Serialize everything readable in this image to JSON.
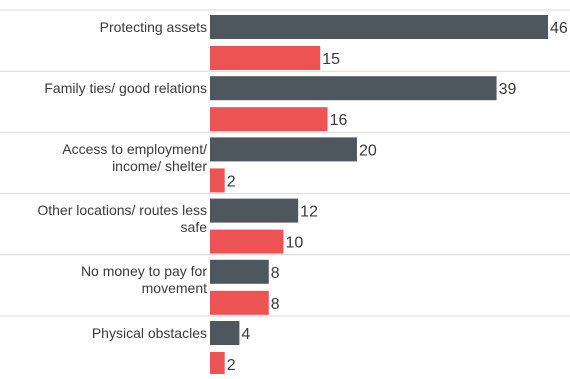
{
  "chart_data": {
    "type": "bar",
    "orientation": "horizontal",
    "categories": [
      "Protecting assets",
      "Family ties/ good relations",
      "Access to employment/ income/ shelter",
      "Other locations/ routes less safe",
      "No money to pay for movement",
      "Physical obstacles"
    ],
    "series": [
      {
        "values": [
          46,
          39,
          20,
          12,
          8,
          4
        ]
      },
      {
        "values": [
          15,
          16,
          2,
          10,
          8,
          2
        ]
      }
    ],
    "colors": [
      "#4f575e",
      "#ee5353"
    ],
    "xlim": [
      0,
      46
    ],
    "grid": false,
    "legend": "none"
  },
  "category_lines": [
    [
      "Protecting assets"
    ],
    [
      "Family ties/ good relations"
    ],
    [
      "Access to employment/",
      "income/ shelter"
    ],
    [
      "Other locations/ routes less",
      "safe"
    ],
    [
      "No money to pay for",
      "movement"
    ],
    [
      "Physical obstacles"
    ]
  ]
}
